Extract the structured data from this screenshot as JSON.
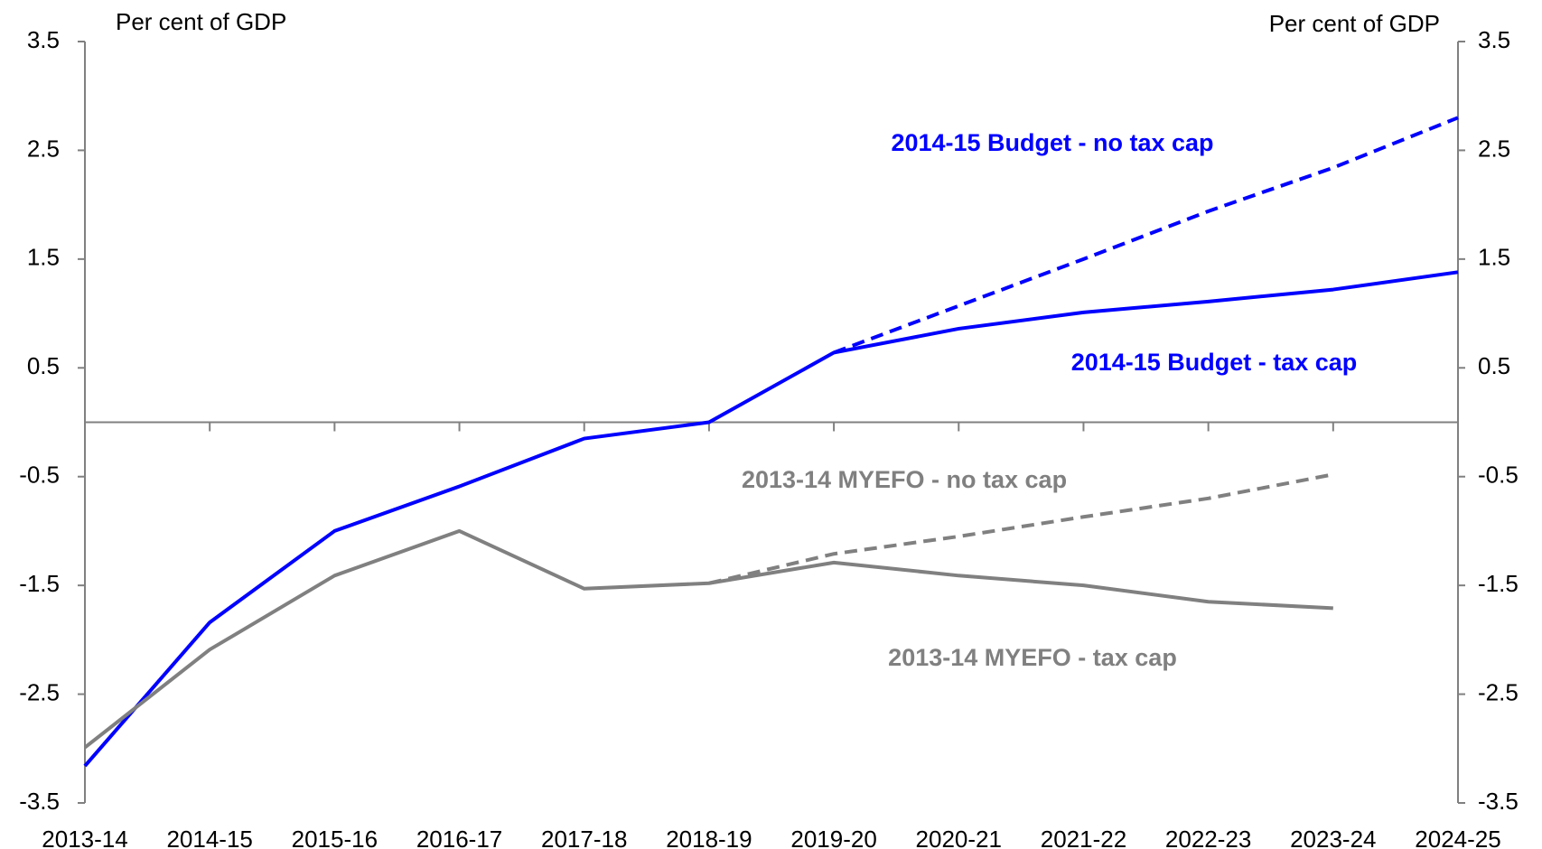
{
  "chart_data": {
    "type": "line",
    "y_label": "Per cent of GDP",
    "y2_label": "Per cent of GDP",
    "categories": [
      "2013-14",
      "2014-15",
      "2015-16",
      "2016-17",
      "2017-18",
      "2018-19",
      "2019-20",
      "2020-21",
      "2021-22",
      "2022-23",
      "2023-24",
      "2024-25"
    ],
    "ylim": [
      -3.5,
      3.5
    ],
    "yticks": [
      3.5,
      2.5,
      1.5,
      0.5,
      -0.5,
      -1.5,
      -2.5,
      -3.5
    ],
    "y2lim": [
      -3.5,
      3.5
    ],
    "y2ticks": [
      3.5,
      2.5,
      1.5,
      0.5,
      -0.5,
      -1.5,
      -2.5,
      -3.5
    ],
    "series": [
      {
        "name": "2014-15 Budget - no tax cap",
        "color": "#0000ff",
        "dash": true,
        "values": [
          null,
          null,
          null,
          null,
          null,
          null,
          0.64,
          1.07,
          1.5,
          1.94,
          2.34,
          2.8
        ]
      },
      {
        "name": "2014-15 Budget - tax cap",
        "color": "#0000ff",
        "dash": false,
        "values": [
          -3.16,
          -1.84,
          -1.0,
          -0.59,
          -0.15,
          0.0,
          0.64,
          0.86,
          1.01,
          1.11,
          1.22,
          1.38
        ]
      },
      {
        "name": "2013-14 MYEFO - no tax cap",
        "color": "#808080",
        "dash": true,
        "values": [
          null,
          null,
          null,
          null,
          null,
          -1.48,
          -1.21,
          -1.05,
          -0.87,
          -0.7,
          -0.48,
          null
        ]
      },
      {
        "name": "2013-14 MYEFO - tax cap",
        "color": "#808080",
        "dash": false,
        "values": [
          -2.99,
          -2.09,
          -1.41,
          -1.0,
          -1.53,
          -1.48,
          -1.29,
          -1.41,
          -1.5,
          -1.65,
          -1.71,
          null
        ]
      }
    ]
  }
}
